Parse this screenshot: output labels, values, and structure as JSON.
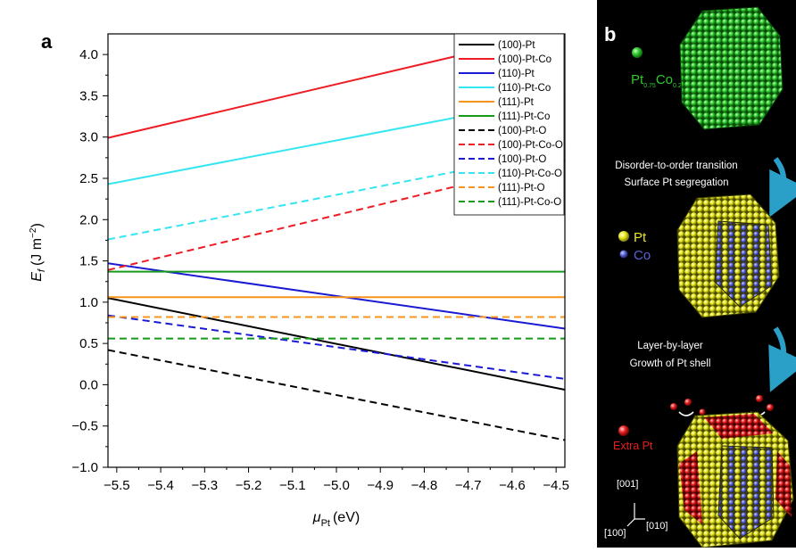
{
  "panel_a_label": "a",
  "panel_b_label": "b",
  "chart_data": {
    "type": "line",
    "xlabel_symbol": "μ",
    "xlabel_sub": "Pt",
    "xlabel_unit": "(eV)",
    "ylabel_symbol": "E",
    "ylabel_sub": "f",
    "ylabel_unit": "(J m",
    "ylabel_exp": "−2",
    "ylabel_close": ")",
    "xlim": [
      -5.52,
      -4.48
    ],
    "ylim": [
      -1.0,
      4.25
    ],
    "xticks": [
      -5.5,
      -5.4,
      -5.3,
      -5.2,
      -5.1,
      -5.0,
      -4.9,
      -4.8,
      -4.7,
      -4.6,
      -4.5
    ],
    "xtick_labels": [
      "−5.5",
      "−5.4",
      "−5.3",
      "−5.2",
      "−5.1",
      "−5.0",
      "−4.9",
      "−4.8",
      "−4.7",
      "−4.6",
      "−4.5"
    ],
    "yticks": [
      -1.0,
      -0.5,
      0.0,
      0.5,
      1.0,
      1.5,
      2.0,
      2.5,
      3.0,
      3.5,
      4.0
    ],
    "ytick_labels": [
      "−1.0",
      "−0.5",
      "0.0",
      "0.5",
      "1.0",
      "1.5",
      "2.0",
      "2.5",
      "3.0",
      "3.5",
      "4.0"
    ],
    "grid": false,
    "legend_position": "top-right",
    "series": [
      {
        "name": "(100)-Pt",
        "color": "#000000",
        "dash": false,
        "x": [
          -5.52,
          -4.48
        ],
        "y": [
          1.05,
          -0.06
        ]
      },
      {
        "name": "(100)-Pt-Co",
        "color": "#ee1c24",
        "dash": false,
        "x": [
          -5.52,
          -4.48
        ],
        "y": [
          2.99,
          4.29
        ]
      },
      {
        "name": "(110)-Pt",
        "color": "#1a1ad4",
        "dash": false,
        "x": [
          -5.52,
          -4.48
        ],
        "y": [
          1.47,
          0.68
        ]
      },
      {
        "name": "(110)-Pt-Co",
        "color": "#33e6f0",
        "dash": false,
        "x": [
          -5.52,
          -4.48
        ],
        "y": [
          2.43,
          3.49
        ]
      },
      {
        "name": "(111)-Pt",
        "color": "#f7941d",
        "dash": false,
        "x": [
          -5.52,
          -4.48
        ],
        "y": [
          1.06,
          1.06
        ]
      },
      {
        "name": "(111)-Pt-Co",
        "color": "#159a1a",
        "dash": false,
        "x": [
          -5.52,
          -4.48
        ],
        "y": [
          1.37,
          1.37
        ]
      },
      {
        "name": "(100)-Pt-O",
        "color": "#000000",
        "dash": true,
        "x": [
          -5.52,
          -4.48
        ],
        "y": [
          0.42,
          -0.67
        ]
      },
      {
        "name": "(100)-Pt-Co-O",
        "color": "#ee1c24",
        "dash": true,
        "x": [
          -5.52,
          -4.48
        ],
        "y": [
          1.39,
          2.72
        ]
      },
      {
        "name": "(100)-Pt-O",
        "color": "#1a1ad4",
        "dash": true,
        "x": [
          -5.52,
          -4.48
        ],
        "y": [
          0.84,
          0.07
        ]
      },
      {
        "name": "(110)-Pt-Co-O",
        "color": "#33e6f0",
        "dash": true,
        "x": [
          -5.52,
          -4.48
        ],
        "y": [
          1.76,
          2.84
        ]
      },
      {
        "name": "(111)-Pt-O",
        "color": "#f7941d",
        "dash": true,
        "x": [
          -5.52,
          -4.48
        ],
        "y": [
          0.82,
          0.82
        ]
      },
      {
        "name": "(111)-Pt-Co-O",
        "color": "#159a1a",
        "dash": true,
        "x": [
          -5.52,
          -4.48
        ],
        "y": [
          0.56,
          0.56
        ]
      }
    ]
  },
  "diagram": {
    "alloy_base": "Pt",
    "alloy_sub1": "0.75",
    "alloy_mid": "Co",
    "alloy_sub2": "0.25",
    "step1_line1": "Disorder-to-order transition",
    "step1_line2": "Surface Pt segregation",
    "legend_pt": "Pt",
    "legend_co": "Co",
    "step2_line1": "Layer-by-layer",
    "step2_line2": "Growth of Pt shell",
    "extra_pt": "Extra Pt",
    "axis_001": "[001]",
    "axis_100": "[100]",
    "axis_010": "[010]",
    "colors": {
      "alloy": "#2ec82e",
      "pt": "#e8e820",
      "co": "#5a64d8",
      "extra": "#e81e1e",
      "arrow": "#2aa0c8"
    }
  }
}
